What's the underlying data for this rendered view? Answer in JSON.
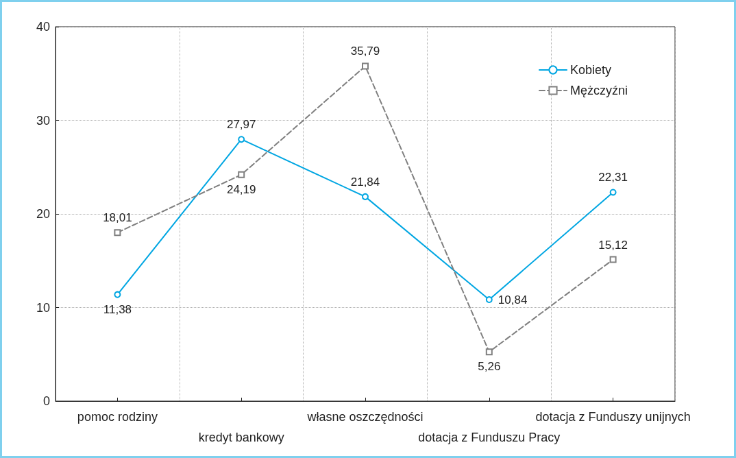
{
  "chart_data": {
    "type": "line",
    "categories": [
      "pomoc rodziny",
      "kredyt bankowy",
      "własne oszczędności",
      "dotacja z Funduszu Pracy",
      "dotacja z Funduszy unijnych"
    ],
    "series": [
      {
        "name": "Kobiety",
        "color": "#00a6e2",
        "marker": "circle",
        "line_style": "solid",
        "values": [
          11.38,
          27.97,
          21.84,
          10.84,
          22.31
        ],
        "value_labels": [
          "11,38",
          "27,97",
          "21,84",
          "10,84",
          "22,31"
        ]
      },
      {
        "name": "Mężczyźni",
        "color": "#7f7f7f",
        "marker": "square",
        "line_style": "dashed",
        "values": [
          18.01,
          24.19,
          35.79,
          5.26,
          15.12
        ],
        "value_labels": [
          "18,01",
          "24,19",
          "35,79",
          "5,26",
          "15,12"
        ]
      }
    ],
    "ylim": [
      0,
      40
    ],
    "yticks": [
      0,
      10,
      20,
      30,
      40
    ],
    "grid": true,
    "legend": "top right"
  }
}
